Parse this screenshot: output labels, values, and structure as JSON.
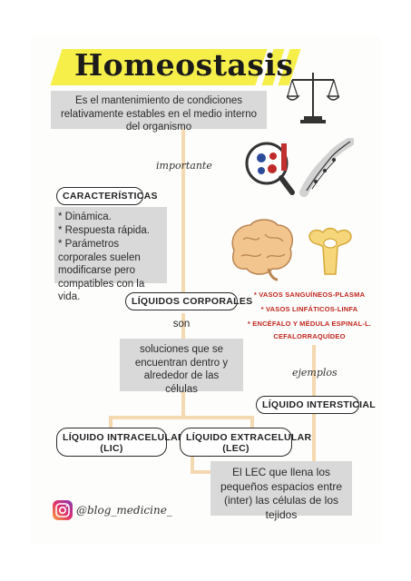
{
  "title": "Homeostasis",
  "definition": "Es el mantenimiento de condiciones relativamente estables en el medio interno del organismo",
  "importante_label": "importante",
  "caracteristicas": {
    "label": "CARACTERÍSTICAS",
    "items": [
      "* Dinámica.",
      "* Respuesta rápida.",
      "* Parámetros corporales suelen modificarse pero compatibles con la vida."
    ]
  },
  "liquidos_corporales": {
    "label": "LÍQUIDOS CORPORALES",
    "son": "son",
    "description": "soluciones que se encuentran dentro y alrededor de las células"
  },
  "examples": [
    "* VASOS SANGUÍNEOS-PLASMA",
    "* VASOS LINFÁTICOS-LINFA",
    "* ENCÉFALO Y MÉDULA ESPINAL-L.",
    "CEFALORRAQUÍDEO"
  ],
  "ejemplos_label": "ejemplos",
  "liquido_intersticial": "LÍQUIDO INTERSTICIAL",
  "lic": {
    "line1": "LÍQUIDO INTRACELULAR",
    "line2": "(LIC)"
  },
  "lec": {
    "line1": "LÍQUIDO EXTRACELULAR",
    "line2": "(LEC)"
  },
  "lec_description": "El LEC que llena los pequeños espacios entre (inter) las células de los tejidos",
  "instagram_handle": "@blog_medicine_",
  "colors": {
    "highlight": "#f6ef4a",
    "box": "#d9d9d9",
    "connector": "#f5d9b0",
    "example_text": "#c0261e"
  }
}
